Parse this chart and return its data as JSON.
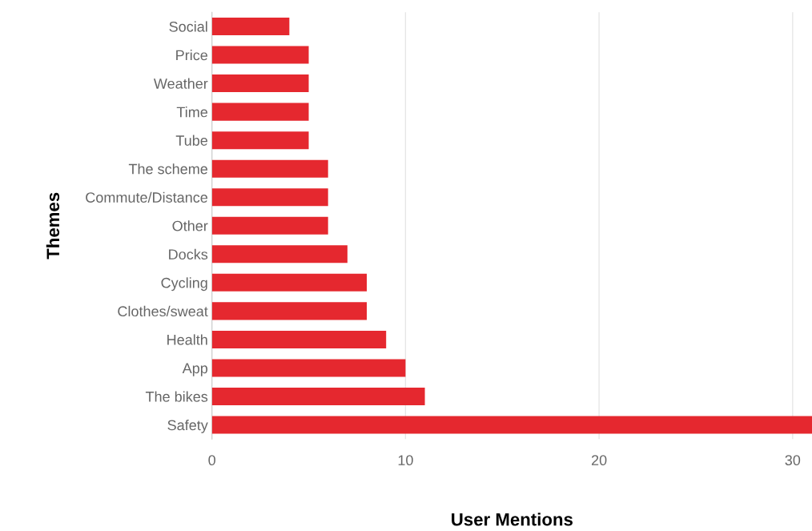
{
  "chart_data": {
    "type": "bar",
    "orientation": "horizontal",
    "xlabel": "User Mentions",
    "ylabel": "Themes",
    "categories": [
      "Social",
      "Price",
      "Weather",
      "Time",
      "Tube",
      "The scheme",
      "Commute/Distance",
      "Other",
      "Docks",
      "Cycling",
      "Clothes/sweat",
      "Health",
      "App",
      "The bikes",
      "Safety"
    ],
    "values": [
      4,
      5,
      5,
      5,
      5,
      6,
      6,
      6,
      7,
      8,
      8,
      9,
      10,
      11,
      31
    ],
    "color": "#e5282f",
    "xlim": [
      0,
      31
    ],
    "xticks": [
      0,
      10,
      20,
      30
    ],
    "grid": "x"
  }
}
